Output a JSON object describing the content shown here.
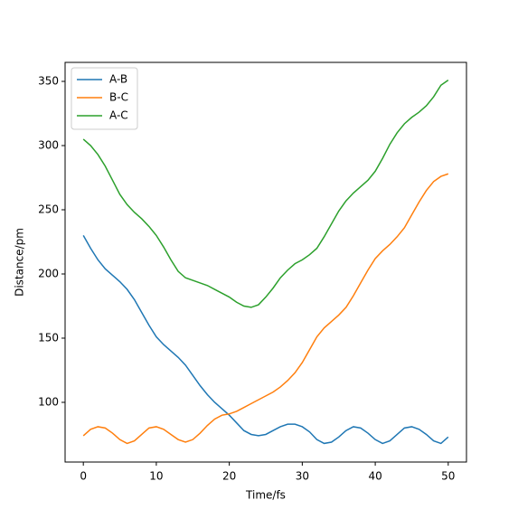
{
  "chart_data": {
    "type": "line",
    "xlabel": "Time/fs",
    "ylabel": "Distance/pm",
    "x": [
      0,
      1,
      2,
      3,
      4,
      5,
      6,
      7,
      8,
      9,
      10,
      11,
      12,
      13,
      14,
      15,
      16,
      17,
      18,
      19,
      20,
      21,
      22,
      23,
      24,
      25,
      26,
      27,
      28,
      29,
      30,
      31,
      32,
      33,
      34,
      35,
      36,
      37,
      38,
      39,
      40,
      41,
      42,
      43,
      44,
      45,
      46,
      47,
      48,
      49,
      50
    ],
    "series": [
      {
        "name": "A-B",
        "color": "#1f77b4",
        "values": [
          230,
          220,
          211,
          204,
          199,
          194,
          188,
          180,
          170,
          160,
          151,
          145,
          140,
          135,
          129,
          121,
          113,
          106,
          100,
          95,
          90,
          84,
          78,
          75,
          74,
          75,
          78,
          81,
          83,
          83,
          81,
          77,
          71,
          68,
          69,
          73,
          78,
          81,
          80,
          76,
          71,
          68,
          70,
          75,
          80,
          81,
          79,
          75,
          70,
          68,
          73
        ]
      },
      {
        "name": "B-C",
        "color": "#ff7f0e",
        "values": [
          74,
          79,
          81,
          80,
          76,
          71,
          68,
          70,
          75,
          80,
          81,
          79,
          75,
          71,
          69,
          71,
          76,
          82,
          87,
          90,
          91,
          93,
          96,
          99,
          102,
          105,
          108,
          112,
          117,
          123,
          131,
          141,
          151,
          158,
          163,
          168,
          174,
          183,
          193,
          203,
          212,
          218,
          223,
          229,
          236,
          246,
          256,
          265,
          272,
          276,
          278
        ]
      },
      {
        "name": "A-C",
        "color": "#2ca02c",
        "values": [
          305,
          300,
          293,
          284,
          273,
          262,
          254,
          248,
          243,
          237,
          230,
          221,
          211,
          202,
          197,
          195,
          193,
          191,
          188,
          185,
          182,
          178,
          175,
          174,
          176,
          182,
          189,
          197,
          203,
          208,
          211,
          215,
          220,
          229,
          239,
          249,
          257,
          263,
          268,
          273,
          280,
          290,
          301,
          310,
          317,
          322,
          326,
          331,
          338,
          347,
          351
        ]
      }
    ],
    "xlim": [
      -2.5,
      52.5
    ],
    "xticks": [
      0,
      10,
      20,
      30,
      40,
      50
    ],
    "ylim": [
      53.5,
      364.8
    ],
    "yticks": [
      100,
      150,
      200,
      250,
      300,
      350
    ],
    "legend": "upper left",
    "grid": false
  }
}
